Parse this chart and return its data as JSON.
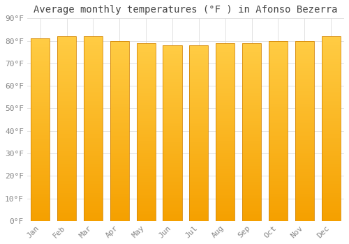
{
  "title": "Average monthly temperatures (°F ) in Afonso Bezerra",
  "months": [
    "Jan",
    "Feb",
    "Mar",
    "Apr",
    "May",
    "Jun",
    "Jul",
    "Aug",
    "Sep",
    "Oct",
    "Nov",
    "Dec"
  ],
  "values": [
    81,
    82,
    82,
    80,
    79,
    78,
    78,
    79,
    79,
    80,
    80,
    82
  ],
  "bar_color_top": "#FFBB33",
  "bar_color_bottom": "#F5A000",
  "bar_edge_color": "#D4880A",
  "background_color": "#FFFFFF",
  "plot_bg_color": "#FFFFFF",
  "grid_color": "#DDDDDD",
  "ylim": [
    0,
    90
  ],
  "yticks": [
    0,
    10,
    20,
    30,
    40,
    50,
    60,
    70,
    80,
    90
  ],
  "title_fontsize": 10,
  "tick_fontsize": 8,
  "title_color": "#444444",
  "tick_color": "#888888",
  "bar_width": 0.72
}
